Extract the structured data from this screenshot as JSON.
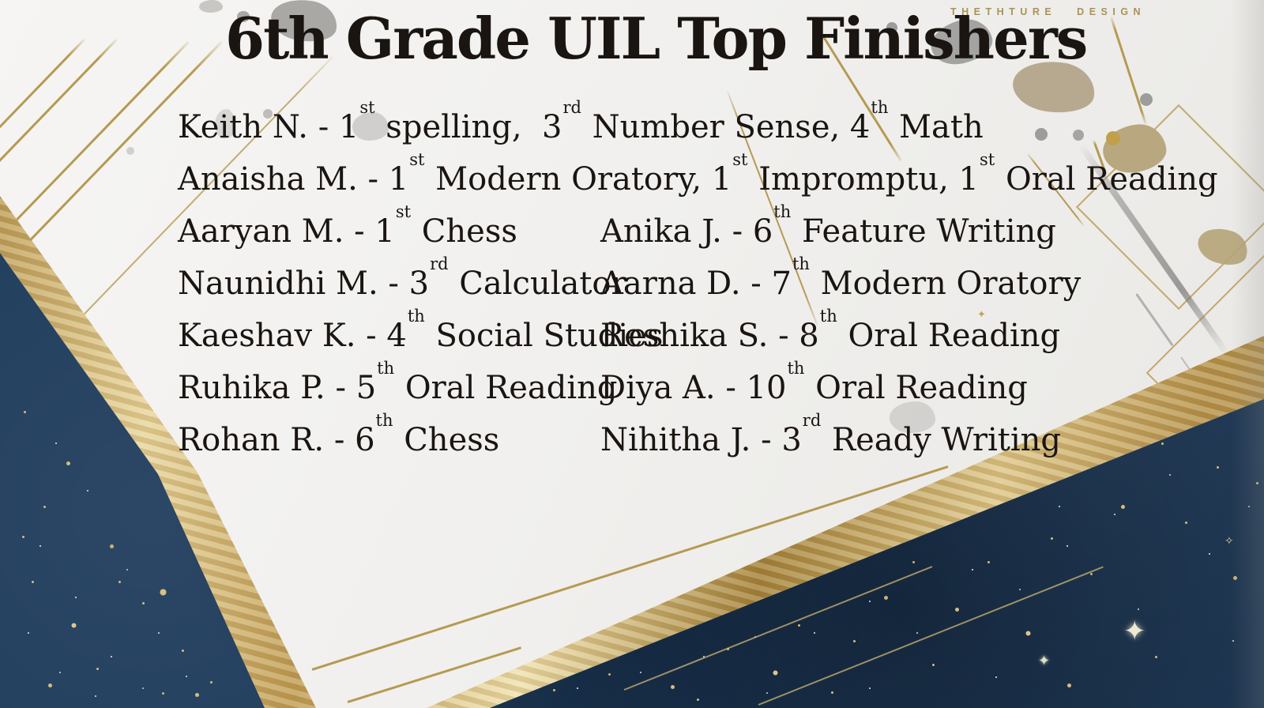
{
  "page": {
    "title": "6th Grade UIL Top Finishers",
    "watermark": "THETHTURE DESIGN"
  },
  "colors": {
    "navy": "#1f3c5c",
    "gold_line": "#b59a52",
    "gold_foil": "#d3b877",
    "paper": "#f1f0ee",
    "ink": "#1a1511",
    "watermark_gold": "#ab9155"
  },
  "icons": {
    "sparkle": "✦",
    "sparkle_small": "✧"
  },
  "results": {
    "rows": [
      {
        "cells": [
          [
            {
              "t": "Keith N. - 1"
            },
            {
              "s": "st"
            },
            {
              "t": " spelling,  3"
            },
            {
              "s": "rd"
            },
            {
              "t": " Number Sense, 4"
            },
            {
              "s": "th"
            },
            {
              "t": " Math"
            }
          ]
        ]
      },
      {
        "cells": [
          [
            {
              "t": "Anaisha M. - 1"
            },
            {
              "s": "st"
            },
            {
              "t": " Modern Oratory, 1"
            },
            {
              "s": "st"
            },
            {
              "t": " Impromptu, 1"
            },
            {
              "s": "st"
            },
            {
              "t": " Oral Reading"
            }
          ]
        ]
      },
      {
        "cells": [
          [
            {
              "t": "Aaryan M. - 1"
            },
            {
              "s": "st"
            },
            {
              "t": " Chess"
            }
          ],
          [
            {
              "t": "Anika J. - 6"
            },
            {
              "s": "th"
            },
            {
              "t": " Feature Writing"
            }
          ]
        ]
      },
      {
        "cells": [
          [
            {
              "t": "Naunidhi M. - 3"
            },
            {
              "s": "rd"
            },
            {
              "t": " Calculator"
            }
          ],
          [
            {
              "t": "Aarna D. - 7"
            },
            {
              "s": "th"
            },
            {
              "t": " Modern Oratory"
            }
          ]
        ]
      },
      {
        "cells": [
          [
            {
              "t": "Kaeshav K. - 4"
            },
            {
              "s": "th"
            },
            {
              "t": " Social Studies"
            }
          ],
          [
            {
              "t": "Reshika S. - 8"
            },
            {
              "s": "th"
            },
            {
              "t": " Oral Reading"
            }
          ]
        ]
      },
      {
        "cells": [
          [
            {
              "t": "Ruhika P. - 5"
            },
            {
              "s": "th"
            },
            {
              "t": " Oral Reading"
            }
          ],
          [
            {
              "t": "Diya A. - 10"
            },
            {
              "s": "th"
            },
            {
              "t": " Oral Reading"
            }
          ]
        ]
      },
      {
        "cells": [
          [
            {
              "t": "Rohan R. - 6"
            },
            {
              "s": "th"
            },
            {
              "t": " Chess"
            }
          ],
          [
            {
              "t": "Nihitha J. - 3"
            },
            {
              "s": "rd"
            },
            {
              "t": " Ready Writing"
            }
          ]
        ]
      }
    ]
  }
}
